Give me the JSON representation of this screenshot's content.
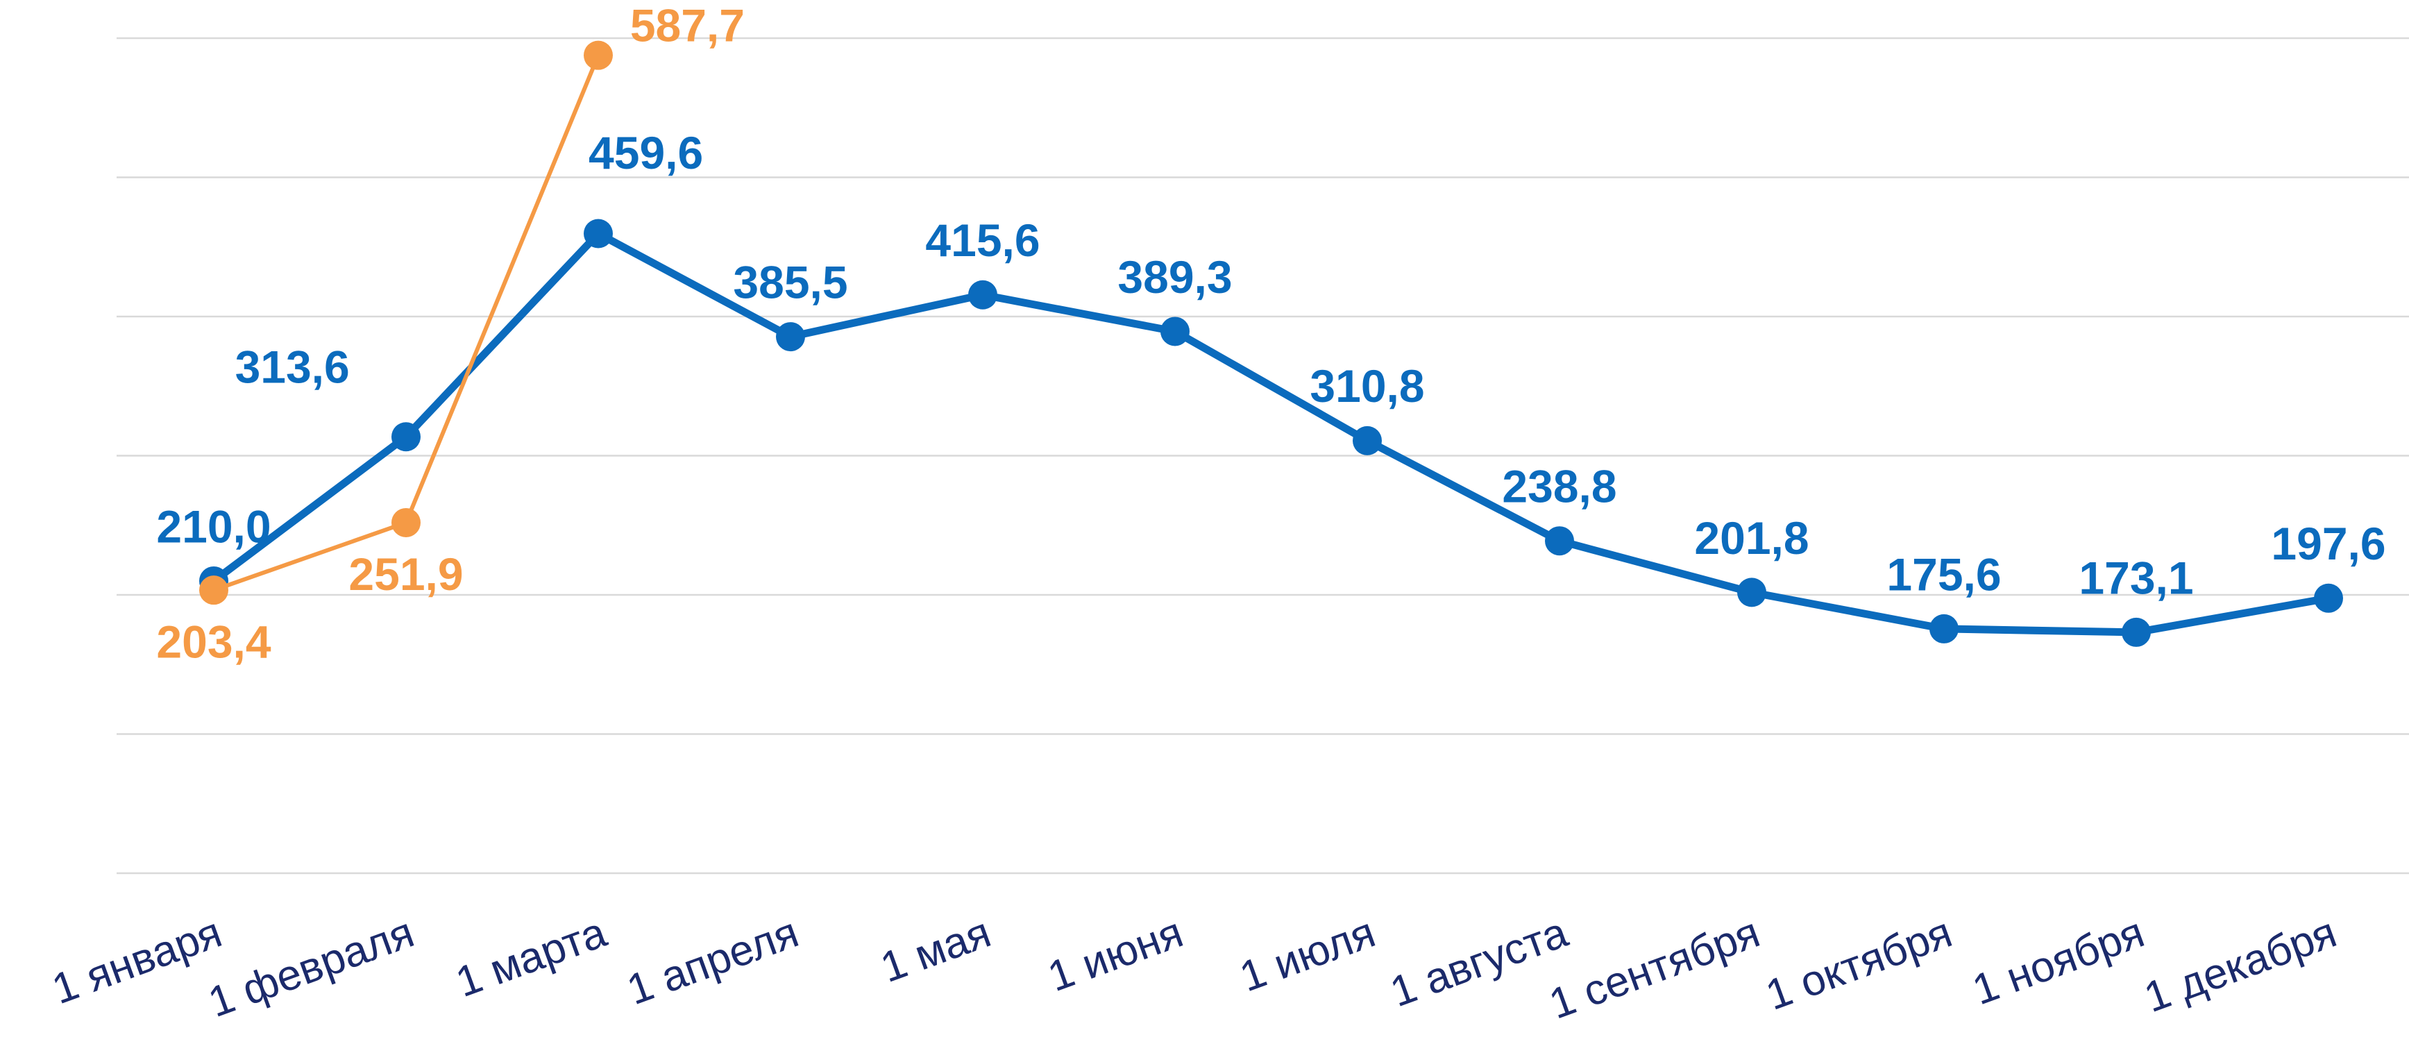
{
  "chart_data": {
    "type": "line",
    "categories": [
      "1 января",
      "1 февраля",
      "1 марта",
      "1 апреля",
      "1 мая",
      "1 июня",
      "1 июля",
      "1 августа",
      "1 сентября",
      "1 октября",
      "1 ноября",
      "1 декабря"
    ],
    "series": [
      {
        "color": "#0b6bbd",
        "values": [
          210.0,
          313.6,
          459.6,
          385.5,
          415.6,
          389.3,
          310.8,
          238.8,
          201.8,
          175.6,
          173.1,
          197.6
        ],
        "value_labels": [
          "210,0",
          "313,6",
          "459,6",
          "385,5",
          "415,6",
          "389,3",
          "310,8",
          "238,8",
          "201,8",
          "175,6",
          "173,1",
          "197,6"
        ]
      },
      {
        "color": "#f59a45",
        "values": [
          203.4,
          251.9,
          587.7,
          null,
          null,
          null,
          null,
          null,
          null,
          null,
          null,
          null
        ],
        "value_labels": [
          "203,4",
          "251,9",
          "587,7",
          null,
          null,
          null,
          null,
          null,
          null,
          null,
          null,
          null
        ]
      }
    ],
    "ylim": [
      0,
      600
    ],
    "yticks": [
      0,
      100,
      200,
      300,
      400,
      500,
      600
    ],
    "grid": true
  }
}
